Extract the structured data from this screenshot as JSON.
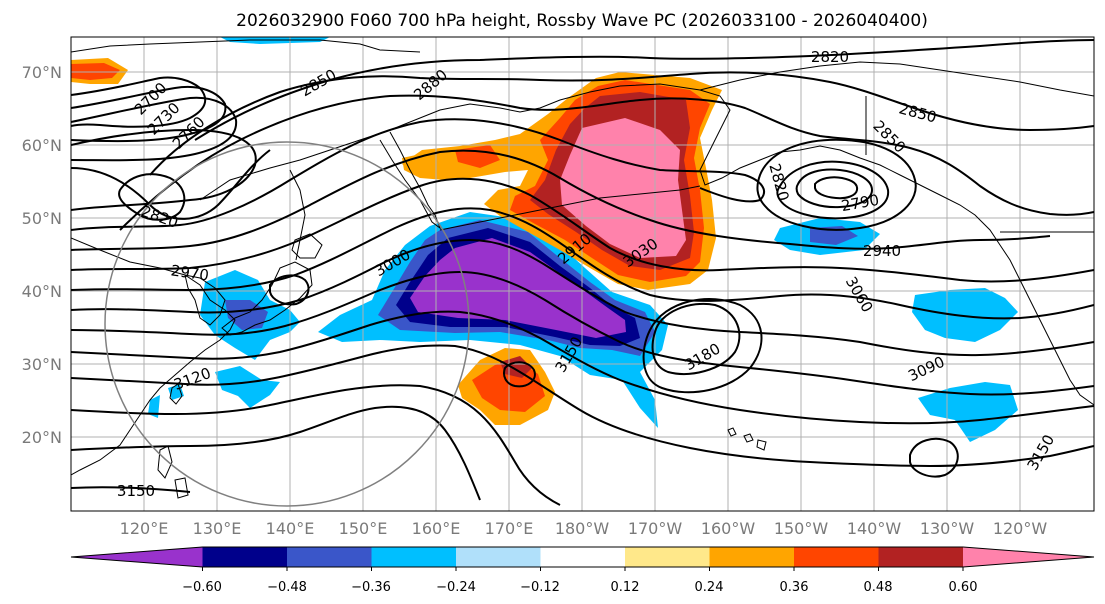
{
  "title": "2026032900 F060 700 hPa height, Rossby Wave PC (2026033100 - 2026040400)",
  "lat_labels": [
    "70°N",
    "60°N",
    "50°N",
    "40°N",
    "30°N",
    "20°N"
  ],
  "lon_labels": [
    "120°E",
    "130°E",
    "140°E",
    "150°E",
    "160°E",
    "170°E",
    "180°W",
    "170°W",
    "160°W",
    "150°W",
    "140°W",
    "130°W",
    "120°W"
  ],
  "contour_labels": [
    "2820",
    "2850",
    "2880",
    "2700",
    "2730",
    "2760",
    "2850",
    "2790",
    "2820",
    "2850",
    "2820",
    "2970",
    "3000",
    "2910",
    "3030",
    "2940",
    "3060",
    "3180",
    "3090",
    "3120",
    "3150",
    "3150",
    "3150"
  ],
  "colorbar": {
    "ticks": [
      "−0.60",
      "−0.48",
      "−0.36",
      "−0.24",
      "−0.12",
      "0.12",
      "0.24",
      "0.36",
      "0.48",
      "0.60"
    ],
    "colors": [
      "#9932cc",
      "#00008b",
      "#3a56c9",
      "#00bfff",
      "#b0e0fa",
      "#ffffff",
      "#ffe88a",
      "#ffa500",
      "#ff4500",
      "#b22222",
      "#ff82ab"
    ]
  }
}
